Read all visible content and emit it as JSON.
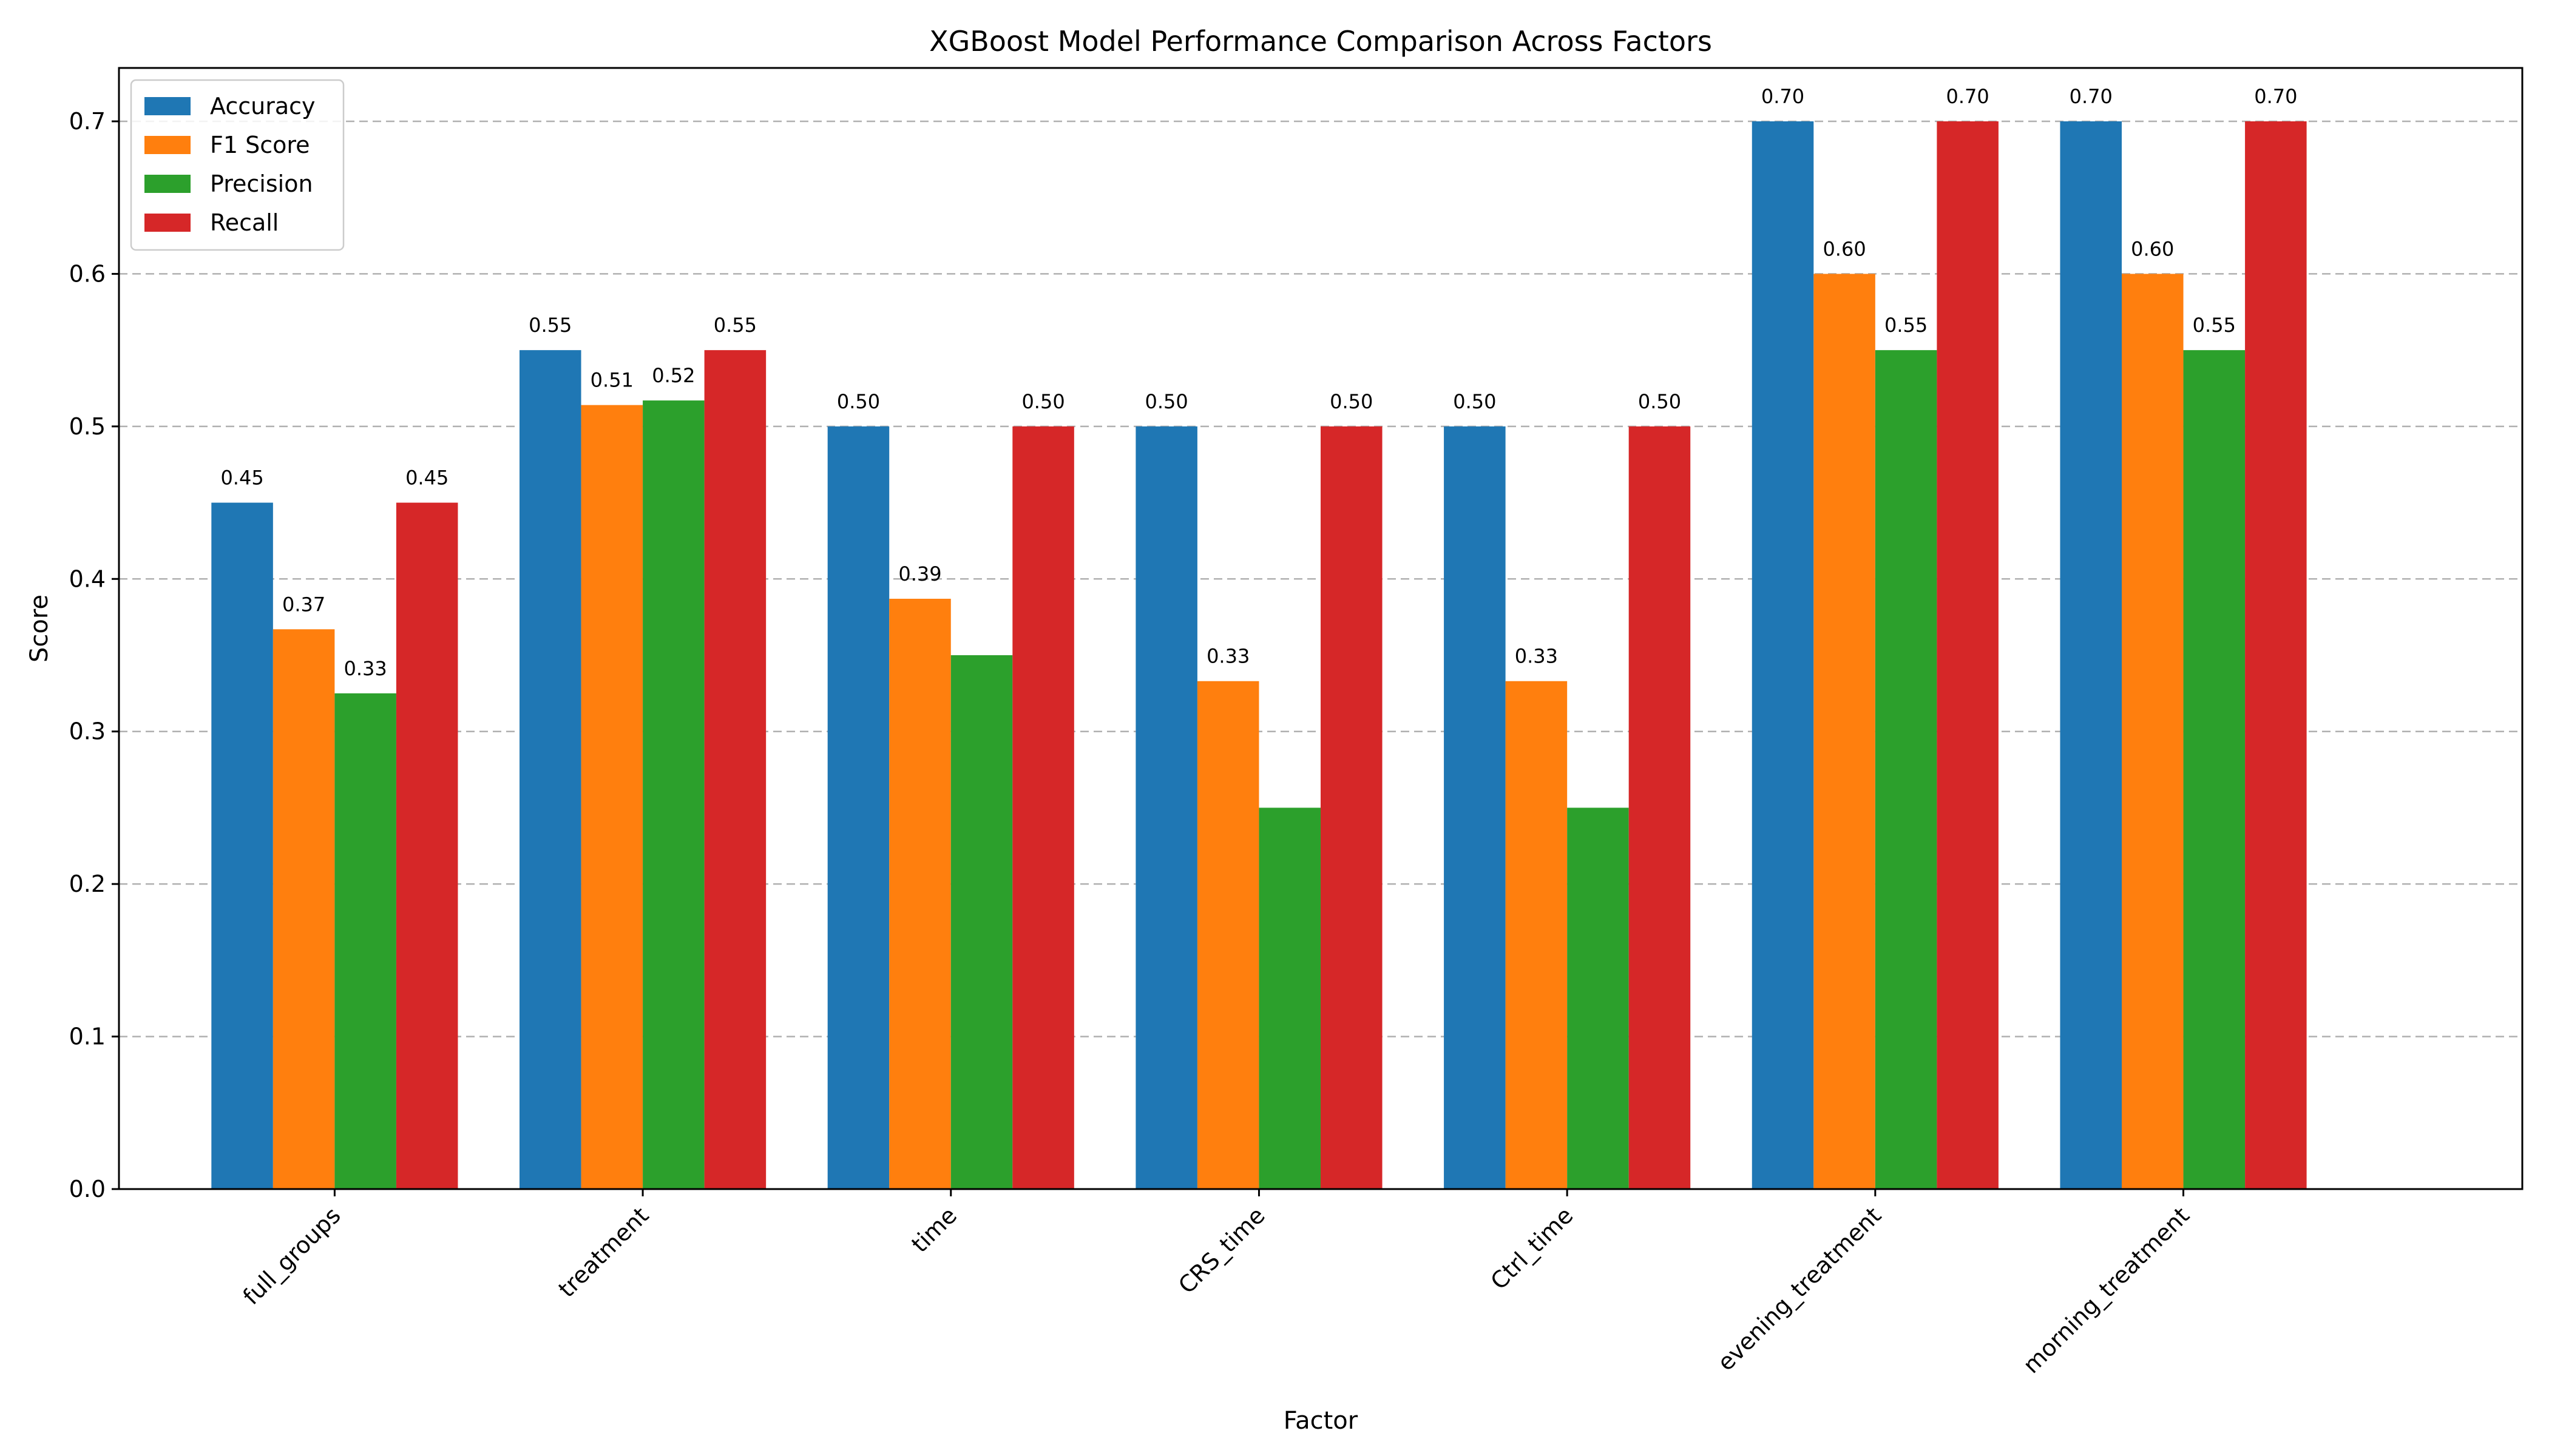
{
  "chart_data": {
    "type": "bar",
    "title": "XGBoost Model Performance Comparison Across Factors",
    "xlabel": "Factor",
    "ylabel": "Score",
    "categories": [
      "full_groups",
      "treatment",
      "time",
      "CRS_time",
      "Ctrl_time",
      "evening_treatment",
      "morning_treatment"
    ],
    "series": [
      {
        "name": "Accuracy",
        "color": "#1f77b4",
        "values": [
          0.45,
          0.55,
          0.5,
          0.5,
          0.5,
          0.7,
          0.7
        ]
      },
      {
        "name": "F1 Score",
        "color": "#ff7f0e",
        "values": [
          0.367,
          0.514,
          0.387,
          0.333,
          0.333,
          0.6,
          0.6
        ]
      },
      {
        "name": "Precision",
        "color": "#2ca02c",
        "values": [
          0.325,
          0.517,
          0.35,
          0.25,
          0.25,
          0.55,
          0.55
        ]
      },
      {
        "name": "Recall",
        "color": "#d62728",
        "values": [
          0.45,
          0.55,
          0.5,
          0.5,
          0.5,
          0.7,
          0.7
        ]
      }
    ],
    "data_labels": [
      [
        "0.45",
        "0.55",
        "0.50",
        "0.50",
        "0.50",
        "0.70",
        "0.70"
      ],
      [
        "0.37",
        "0.51",
        "0.39",
        "0.33",
        "0.33",
        "0.60",
        "0.60"
      ],
      [
        "0.33",
        "0.52",
        "0.35",
        "0.25",
        "0.25",
        "0.55",
        "0.55"
      ],
      [
        "0.45",
        "0.55",
        "0.50",
        "0.50",
        "0.50",
        "0.70",
        "0.70"
      ]
    ],
    "hidden_labels": [
      [],
      [],
      [
        2,
        3,
        4
      ],
      []
    ],
    "ylim": [
      0,
      0.735
    ],
    "yticks": [
      "0.0",
      "0.1",
      "0.2",
      "0.3",
      "0.4",
      "0.5",
      "0.6",
      "0.7"
    ],
    "grid": "y, dashed",
    "legend_position": "upper-left"
  }
}
